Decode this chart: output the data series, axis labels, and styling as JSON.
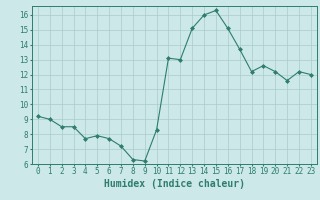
{
  "x": [
    0,
    1,
    2,
    3,
    4,
    5,
    6,
    7,
    8,
    9,
    10,
    11,
    12,
    13,
    14,
    15,
    16,
    17,
    18,
    19,
    20,
    21,
    22,
    23
  ],
  "y": [
    9.2,
    9.0,
    8.5,
    8.5,
    7.7,
    7.9,
    7.7,
    7.2,
    6.3,
    6.2,
    8.3,
    13.1,
    13.0,
    15.1,
    16.0,
    16.3,
    15.1,
    13.7,
    12.2,
    12.6,
    12.2,
    11.6,
    12.2,
    12.0
  ],
  "line_color": "#2e7d6e",
  "marker": "D",
  "marker_size": 2.0,
  "bg_color": "#cce8e8",
  "grid_color": "#aacccc",
  "xlabel": "Humidex (Indice chaleur)",
  "ylabel": "",
  "xlim": [
    -0.5,
    23.5
  ],
  "ylim": [
    6,
    16.6
  ],
  "yticks": [
    6,
    7,
    8,
    9,
    10,
    11,
    12,
    13,
    14,
    15,
    16
  ],
  "xticks": [
    0,
    1,
    2,
    3,
    4,
    5,
    6,
    7,
    8,
    9,
    10,
    11,
    12,
    13,
    14,
    15,
    16,
    17,
    18,
    19,
    20,
    21,
    22,
    23
  ],
  "tick_fontsize": 5.5,
  "xlabel_fontsize": 7.0,
  "line_width": 0.8
}
